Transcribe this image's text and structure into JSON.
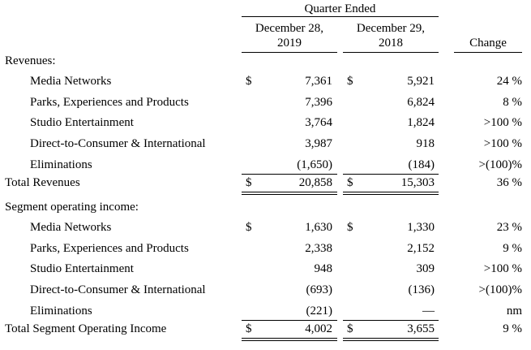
{
  "header": {
    "group_label": "Quarter Ended",
    "col1": [
      "December 28,",
      "2019"
    ],
    "col2": [
      "December 29,",
      "2018"
    ],
    "change": "Change"
  },
  "sections": [
    {
      "heading": "Revenues:",
      "rows": [
        {
          "label": "Media Networks",
          "sign1": "$",
          "v1": "7,361",
          "sign2": "$",
          "v2": "5,921",
          "change": "24 %"
        },
        {
          "label": "Parks, Experiences and Products",
          "sign1": "",
          "v1": "7,396",
          "sign2": "",
          "v2": "6,824",
          "change": "8 %"
        },
        {
          "label": "Studio Entertainment",
          "sign1": "",
          "v1": "3,764",
          "sign2": "",
          "v2": "1,824",
          "change": ">100 %"
        },
        {
          "label": "Direct-to-Consumer & International",
          "sign1": "",
          "v1": "3,987",
          "sign2": "",
          "v2": "918",
          "change": ">100 %"
        },
        {
          "label": "Eliminations",
          "sign1": "",
          "v1": "(1,650)",
          "sign2": "",
          "v2": "(184)",
          "change": ">(100)%"
        }
      ],
      "total": {
        "label": "Total Revenues",
        "sign1": "$",
        "v1": "20,858",
        "sign2": "$",
        "v2": "15,303",
        "change": "36 %"
      }
    },
    {
      "heading": "Segment operating income:",
      "rows": [
        {
          "label": "Media Networks",
          "sign1": "$",
          "v1": "1,630",
          "sign2": "$",
          "v2": "1,330",
          "change": "23 %"
        },
        {
          "label": "Parks, Experiences and Products",
          "sign1": "",
          "v1": "2,338",
          "sign2": "",
          "v2": "2,152",
          "change": "9 %"
        },
        {
          "label": "Studio Entertainment",
          "sign1": "",
          "v1": "948",
          "sign2": "",
          "v2": "309",
          "change": ">100 %"
        },
        {
          "label": "Direct-to-Consumer & International",
          "sign1": "",
          "v1": "(693)",
          "sign2": "",
          "v2": "(136)",
          "change": ">(100)%"
        },
        {
          "label": "Eliminations",
          "sign1": "",
          "v1": "(221)",
          "sign2": "",
          "v2": "—",
          "change": "nm"
        }
      ],
      "total": {
        "label": "Total Segment Operating Income",
        "sign1": "$",
        "v1": "4,002",
        "sign2": "$",
        "v2": "3,655",
        "change": "9 %"
      }
    }
  ]
}
